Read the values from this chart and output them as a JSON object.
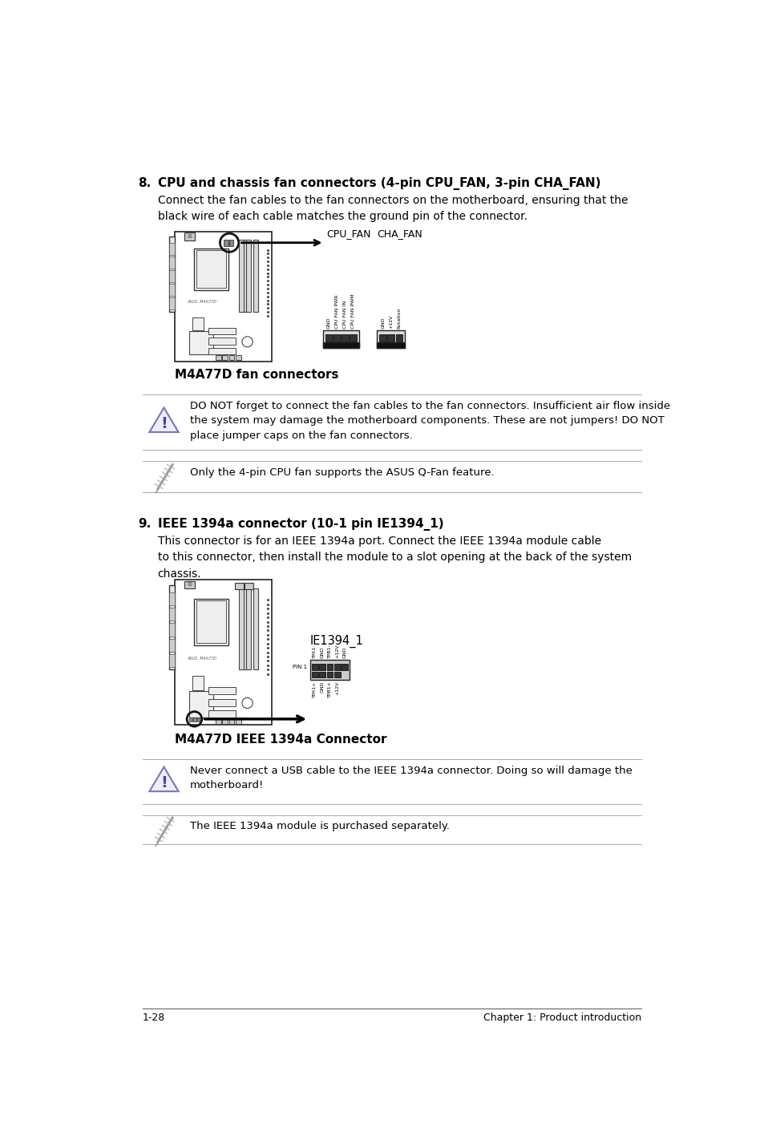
{
  "bg_color": "#ffffff",
  "section8_heading_num": "8.",
  "section8_heading_text": "CPU and chassis fan connectors (4-pin CPU_FAN, 3-pin CHA_FAN)",
  "section8_body": "Connect the fan cables to the fan connectors on the motherboard, ensuring that the\nblack wire of each cable matches the ground pin of the connector.",
  "section8_caption": "M4A77D fan connectors",
  "section9_heading_num": "9.",
  "section9_heading_text": "IEEE 1394a connector (10-1 pin IE1394_1)",
  "section9_body": "This connector is for an IEEE 1394a port. Connect the IEEE 1394a module cable\nto this connector, then install the module to a slot opening at the back of the system\nchassis.",
  "section9_caption": "M4A77D IEEE 1394a Connector",
  "warning1_text": "DO NOT forget to connect the fan cables to the fan connectors. Insufficient air flow inside\nthe system may damage the motherboard components. These are not jumpers! DO NOT\nplace jumper caps on the fan connectors.",
  "note1_text": "Only the 4-pin CPU fan supports the ASUS Q-Fan feature.",
  "warning2_text": "Never connect a USB cable to the IEEE 1394a connector. Doing so will damage the\nmotherboard!",
  "note2_text": "The IEEE 1394a module is purchased separately.",
  "footer_left": "1-28",
  "footer_right": "Chapter 1: Product introduction",
  "cpu_fan_labels": [
    "GND",
    "CPU FAN PWR",
    "CPU FAN IN",
    "CPU FAN PWM"
  ],
  "cha_fan_labels": [
    "GND",
    "+12V",
    "Rotation"
  ],
  "ie1394_top_labels": [
    "TPA1-",
    "GND",
    "TPB1-",
    "+12V",
    "GND"
  ],
  "ie1394_bot_labels": [
    "TPA1+",
    "GND",
    "TPB1+",
    "+12V"
  ]
}
